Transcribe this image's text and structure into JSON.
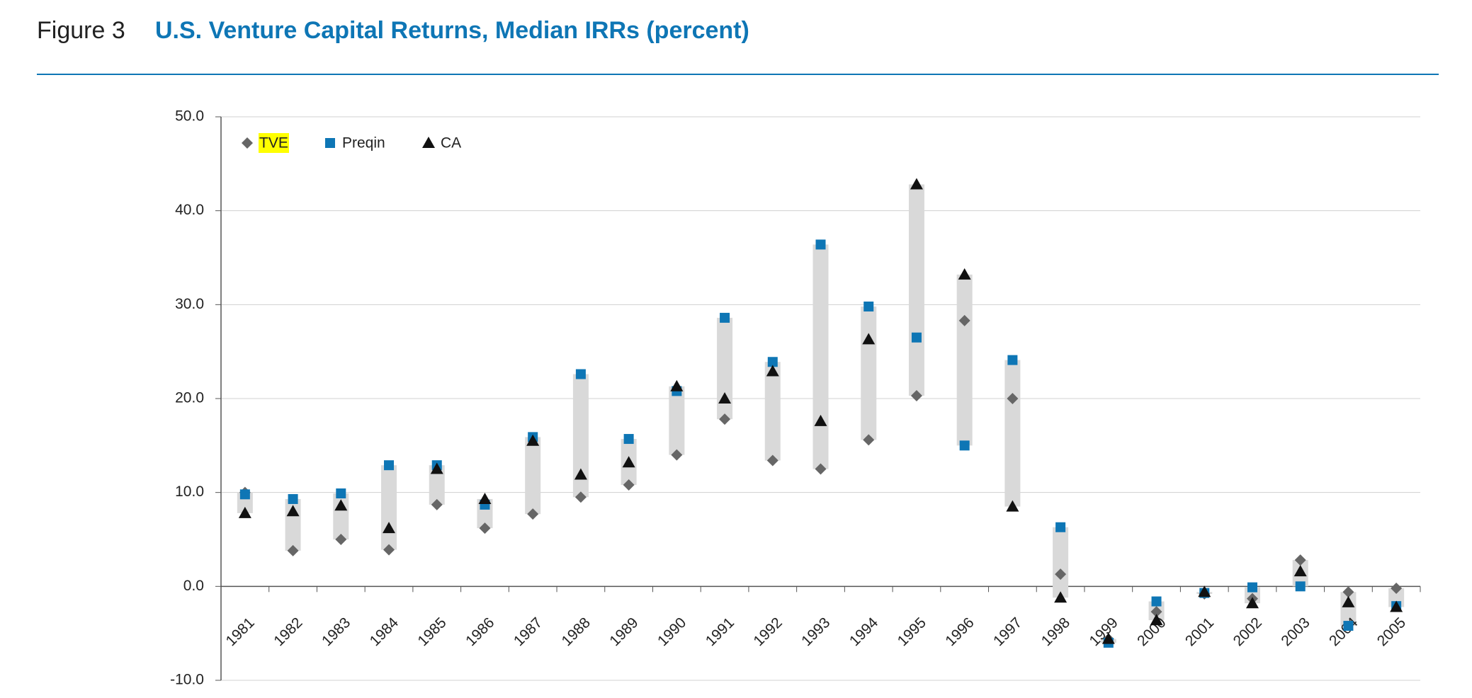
{
  "header": {
    "figure": "Figure 3",
    "title": "U.S. Venture Capital Returns, Median IRRs (percent)"
  },
  "chart_data": {
    "type": "range-dot",
    "categories": [
      "1981",
      "1982",
      "1983",
      "1984",
      "1985",
      "1986",
      "1987",
      "1988",
      "1989",
      "1990",
      "1991",
      "1992",
      "1993",
      "1994",
      "1995",
      "1996",
      "1997",
      "1998",
      "1999",
      "2000",
      "2001",
      "2002",
      "2003",
      "2004",
      "2005"
    ],
    "series": [
      {
        "name": "TVE",
        "color": "#666666",
        "marker": "diamond",
        "values": [
          10.0,
          3.8,
          5.0,
          3.9,
          8.7,
          6.2,
          7.7,
          9.5,
          10.8,
          14.0,
          17.8,
          13.4,
          12.5,
          15.6,
          20.3,
          28.3,
          20.0,
          1.3,
          -5.6,
          -2.7,
          -0.8,
          -1.3,
          2.8,
          -0.6,
          -0.2
        ]
      },
      {
        "name": "Preqin",
        "color": "#0e76b5",
        "marker": "square",
        "values": [
          9.8,
          9.3,
          9.9,
          12.9,
          12.9,
          8.7,
          15.9,
          22.6,
          15.7,
          20.8,
          28.6,
          23.9,
          36.4,
          29.8,
          26.5,
          15.0,
          24.1,
          6.3,
          -6.0,
          -1.6,
          -0.7,
          -0.1,
          0.0,
          -4.2,
          -2.1
        ]
      },
      {
        "name": "CA",
        "color": "#111111",
        "marker": "triangle",
        "values": [
          7.8,
          8.0,
          8.6,
          6.2,
          12.5,
          9.3,
          15.5,
          11.9,
          13.2,
          21.3,
          20.0,
          22.9,
          17.6,
          26.3,
          42.8,
          33.2,
          8.5,
          -1.2,
          -5.6,
          -3.6,
          -0.6,
          -1.8,
          1.6,
          -1.7,
          -2.2
        ]
      }
    ],
    "range_color": "#d9d9d9",
    "ylim": [
      -10,
      50
    ],
    "yticks": [
      {
        "value": -10,
        "label": "-10.0"
      },
      {
        "value": 0,
        "label": "0.0"
      },
      {
        "value": 10,
        "label": "10.0"
      },
      {
        "value": 20,
        "label": "20.0"
      },
      {
        "value": 30,
        "label": "30.0"
      },
      {
        "value": 40,
        "label": "40.0"
      },
      {
        "value": 50,
        "label": "50.0"
      }
    ],
    "grid": true,
    "legend": "top-left"
  }
}
